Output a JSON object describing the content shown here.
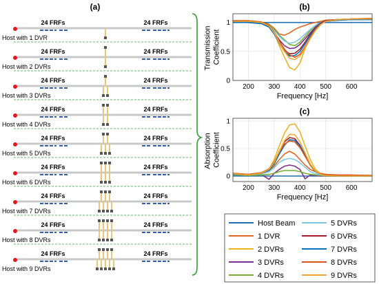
{
  "panel_a": {
    "label": "(a)",
    "frf_label": "24 FRFs",
    "rows": [
      {
        "label": "Host with 1 DVR",
        "dvr_count": 1
      },
      {
        "label": "Host with 2 DVRs",
        "dvr_count": 2
      },
      {
        "label": "Host with 3 DVRs",
        "dvr_count": 3
      },
      {
        "label": "Host with 4 DVRs",
        "dvr_count": 4
      },
      {
        "label": "Host with 5 DVRs",
        "dvr_count": 5
      },
      {
        "label": "Host with 6 DVRs",
        "dvr_count": 6
      },
      {
        "label": "Host with 7 DVRs",
        "dvr_count": 7
      },
      {
        "label": "Host with 8 DVRs",
        "dvr_count": 8
      },
      {
        "label": "Host with 9 DVRs",
        "dvr_count": 9
      }
    ]
  },
  "panel_b": {
    "label": "(b)"
  },
  "panel_c": {
    "label": "(c)"
  },
  "legend": [
    {
      "name": "Host Beam",
      "color": "#1f6fb4"
    },
    {
      "name": "5 DVRs",
      "color": "#7ec8e3"
    },
    {
      "name": "1 DVR",
      "color": "#e0661f"
    },
    {
      "name": "6 DVRs",
      "color": "#a3182f"
    },
    {
      "name": "2 DVRs",
      "color": "#edb120"
    },
    {
      "name": "7 DVRs",
      "color": "#0072bd"
    },
    {
      "name": "3 DVRs",
      "color": "#7e2f8e"
    },
    {
      "name": "8 DVRs",
      "color": "#d95319"
    },
    {
      "name": "4 DVRs",
      "color": "#77ac30"
    },
    {
      "name": "9 DVRs",
      "color": "#f0a830"
    }
  ],
  "chart_data": [
    {
      "type": "line",
      "title": "(b)",
      "xlabel": "Frequency [Hz]",
      "ylabel": "Transmission Coefficient",
      "xlim": [
        140,
        680
      ],
      "ylim": [
        0,
        1.15
      ],
      "xticks": [
        200,
        300,
        400,
        500,
        600
      ],
      "yticks": [
        0,
        0.5,
        1
      ],
      "grid": true,
      "x": [
        140,
        200,
        250,
        280,
        300,
        320,
        340,
        360,
        380,
        400,
        420,
        440,
        460,
        480,
        500,
        550,
        600,
        680
      ],
      "series": [
        {
          "name": "Host Beam",
          "color": "#1f6fb4",
          "values": [
            1.0,
            1.0,
            1.0,
            1.0,
            1.0,
            1.0,
            1.0,
            1.0,
            1.0,
            1.0,
            1.0,
            1.0,
            1.0,
            1.0,
            1.0,
            1.0,
            1.0,
            1.0
          ]
        },
        {
          "name": "1 DVR",
          "color": "#e0661f",
          "values": [
            1.02,
            1.02,
            1.0,
            0.97,
            0.9,
            0.8,
            0.78,
            0.82,
            0.88,
            0.92,
            0.95,
            0.98,
            1.0,
            1.02,
            1.04,
            1.05,
            1.06,
            1.06
          ]
        },
        {
          "name": "2 DVRs",
          "color": "#edb120",
          "values": [
            1.03,
            1.03,
            1.0,
            0.95,
            0.82,
            0.6,
            0.4,
            0.22,
            0.18,
            0.3,
            0.55,
            0.75,
            0.9,
            0.98,
            1.03,
            1.05,
            1.06,
            1.07
          ]
        },
        {
          "name": "3 DVRs",
          "color": "#7e2f8e",
          "values": [
            1.0,
            1.0,
            0.98,
            0.93,
            0.82,
            0.7,
            0.6,
            0.55,
            0.56,
            0.62,
            0.72,
            0.82,
            0.92,
            0.98,
            1.02,
            1.04,
            1.05,
            1.05
          ]
        },
        {
          "name": "4 DVRs",
          "color": "#77ac30",
          "values": [
            1.02,
            1.02,
            1.0,
            0.96,
            0.88,
            0.78,
            0.7,
            0.62,
            0.6,
            0.66,
            0.76,
            0.86,
            0.95,
            1.0,
            1.03,
            1.05,
            1.06,
            1.06
          ]
        },
        {
          "name": "5 DVRs",
          "color": "#7ec8e3",
          "values": [
            1.01,
            1.01,
            0.99,
            0.95,
            0.86,
            0.76,
            0.68,
            0.64,
            0.66,
            0.72,
            0.8,
            0.88,
            0.95,
            1.0,
            1.02,
            1.04,
            1.05,
            1.05
          ]
        },
        {
          "name": "6 DVRs",
          "color": "#a3182f",
          "values": [
            1.02,
            1.02,
            1.0,
            0.94,
            0.82,
            0.66,
            0.52,
            0.46,
            0.47,
            0.54,
            0.66,
            0.8,
            0.92,
            0.99,
            1.03,
            1.05,
            1.06,
            1.06
          ]
        },
        {
          "name": "7 DVRs",
          "color": "#0072bd",
          "values": [
            1.0,
            1.0,
            0.98,
            0.92,
            0.8,
            0.64,
            0.5,
            0.42,
            0.43,
            0.5,
            0.63,
            0.78,
            0.9,
            0.98,
            1.02,
            1.04,
            1.05,
            1.05
          ]
        },
        {
          "name": "8 DVRs",
          "color": "#d95319",
          "values": [
            1.03,
            1.03,
            1.01,
            0.95,
            0.83,
            0.68,
            0.54,
            0.44,
            0.4,
            0.45,
            0.58,
            0.74,
            0.88,
            0.97,
            1.02,
            1.05,
            1.06,
            1.07
          ]
        },
        {
          "name": "9 DVRs",
          "color": "#f0a830",
          "values": [
            1.02,
            1.02,
            1.0,
            0.94,
            0.82,
            0.65,
            0.5,
            0.38,
            0.36,
            0.42,
            0.56,
            0.72,
            0.86,
            0.96,
            1.02,
            1.05,
            1.06,
            1.06
          ]
        }
      ]
    },
    {
      "type": "line",
      "title": "(c)",
      "xlabel": "Frequency [Hz]",
      "ylabel": "Absorption Coefficient",
      "xlim": [
        140,
        680
      ],
      "ylim": [
        -0.1,
        1.05
      ],
      "xticks": [
        200,
        300,
        400,
        500,
        600
      ],
      "yticks": [
        0,
        0.5,
        1
      ],
      "grid": true,
      "x": [
        140,
        200,
        250,
        280,
        300,
        320,
        340,
        360,
        380,
        400,
        420,
        440,
        460,
        480,
        500,
        550,
        600,
        680
      ],
      "series": [
        {
          "name": "Host Beam",
          "color": "#1f6fb4",
          "values": [
            0.0,
            0.0,
            0.0,
            0.0,
            0.0,
            0.0,
            0.0,
            0.0,
            0.0,
            0.0,
            0.0,
            0.0,
            0.0,
            0.0,
            0.0,
            0.0,
            0.0,
            0.0
          ]
        },
        {
          "name": "1 DVR",
          "color": "#e0661f",
          "values": [
            0.05,
            0.03,
            0.06,
            0.1,
            0.18,
            0.3,
            0.4,
            0.45,
            0.4,
            0.3,
            0.2,
            0.12,
            0.08,
            0.05,
            0.03,
            0.02,
            0.02,
            0.01
          ]
        },
        {
          "name": "2 DVRs",
          "color": "#edb120",
          "values": [
            0.04,
            0.02,
            0.05,
            0.12,
            0.3,
            0.55,
            0.78,
            0.93,
            0.95,
            0.8,
            0.55,
            0.3,
            0.12,
            0.04,
            0.01,
            0.0,
            0.0,
            0.0
          ]
        },
        {
          "name": "3 DVRs",
          "color": "#7e2f8e",
          "values": [
            0.03,
            0.02,
            0.03,
            -0.06,
            0.05,
            0.12,
            0.18,
            0.2,
            0.18,
            0.12,
            -0.05,
            0.02,
            0.01,
            0.0,
            0.0,
            0.0,
            0.0,
            0.0
          ]
        },
        {
          "name": "4 DVRs",
          "color": "#77ac30",
          "values": [
            0.02,
            0.01,
            0.02,
            0.03,
            0.05,
            0.08,
            0.1,
            0.1,
            0.1,
            0.08,
            0.05,
            0.03,
            0.02,
            0.01,
            0.0,
            0.0,
            0.0,
            0.0
          ]
        },
        {
          "name": "5 DVRs",
          "color": "#7ec8e3",
          "values": [
            0.03,
            0.02,
            0.04,
            0.08,
            0.15,
            0.25,
            0.3,
            0.32,
            0.3,
            0.24,
            0.16,
            0.08,
            0.04,
            0.02,
            0.01,
            0.0,
            0.0,
            0.0
          ]
        },
        {
          "name": "6 DVRs",
          "color": "#a3182f",
          "values": [
            0.04,
            0.02,
            0.05,
            0.12,
            0.25,
            0.45,
            0.62,
            0.7,
            0.68,
            0.56,
            0.38,
            0.2,
            0.08,
            0.03,
            0.01,
            0.0,
            0.0,
            0.0
          ]
        },
        {
          "name": "7 DVRs",
          "color": "#0072bd",
          "values": [
            0.03,
            0.02,
            0.05,
            0.1,
            0.22,
            0.4,
            0.56,
            0.66,
            0.65,
            0.55,
            0.38,
            0.2,
            0.08,
            0.03,
            0.01,
            0.0,
            0.0,
            0.0
          ]
        },
        {
          "name": "8 DVRs",
          "color": "#d95319",
          "values": [
            0.05,
            0.03,
            0.06,
            0.13,
            0.26,
            0.44,
            0.58,
            0.64,
            0.62,
            0.52,
            0.36,
            0.2,
            0.09,
            0.04,
            0.02,
            0.01,
            0.01,
            0.01
          ]
        },
        {
          "name": "9 DVRs",
          "color": "#f0a830",
          "values": [
            0.04,
            0.02,
            0.05,
            0.12,
            0.25,
            0.45,
            0.64,
            0.76,
            0.75,
            0.62,
            0.42,
            0.22,
            0.09,
            0.03,
            0.01,
            0.0,
            0.0,
            0.0
          ]
        }
      ]
    }
  ]
}
